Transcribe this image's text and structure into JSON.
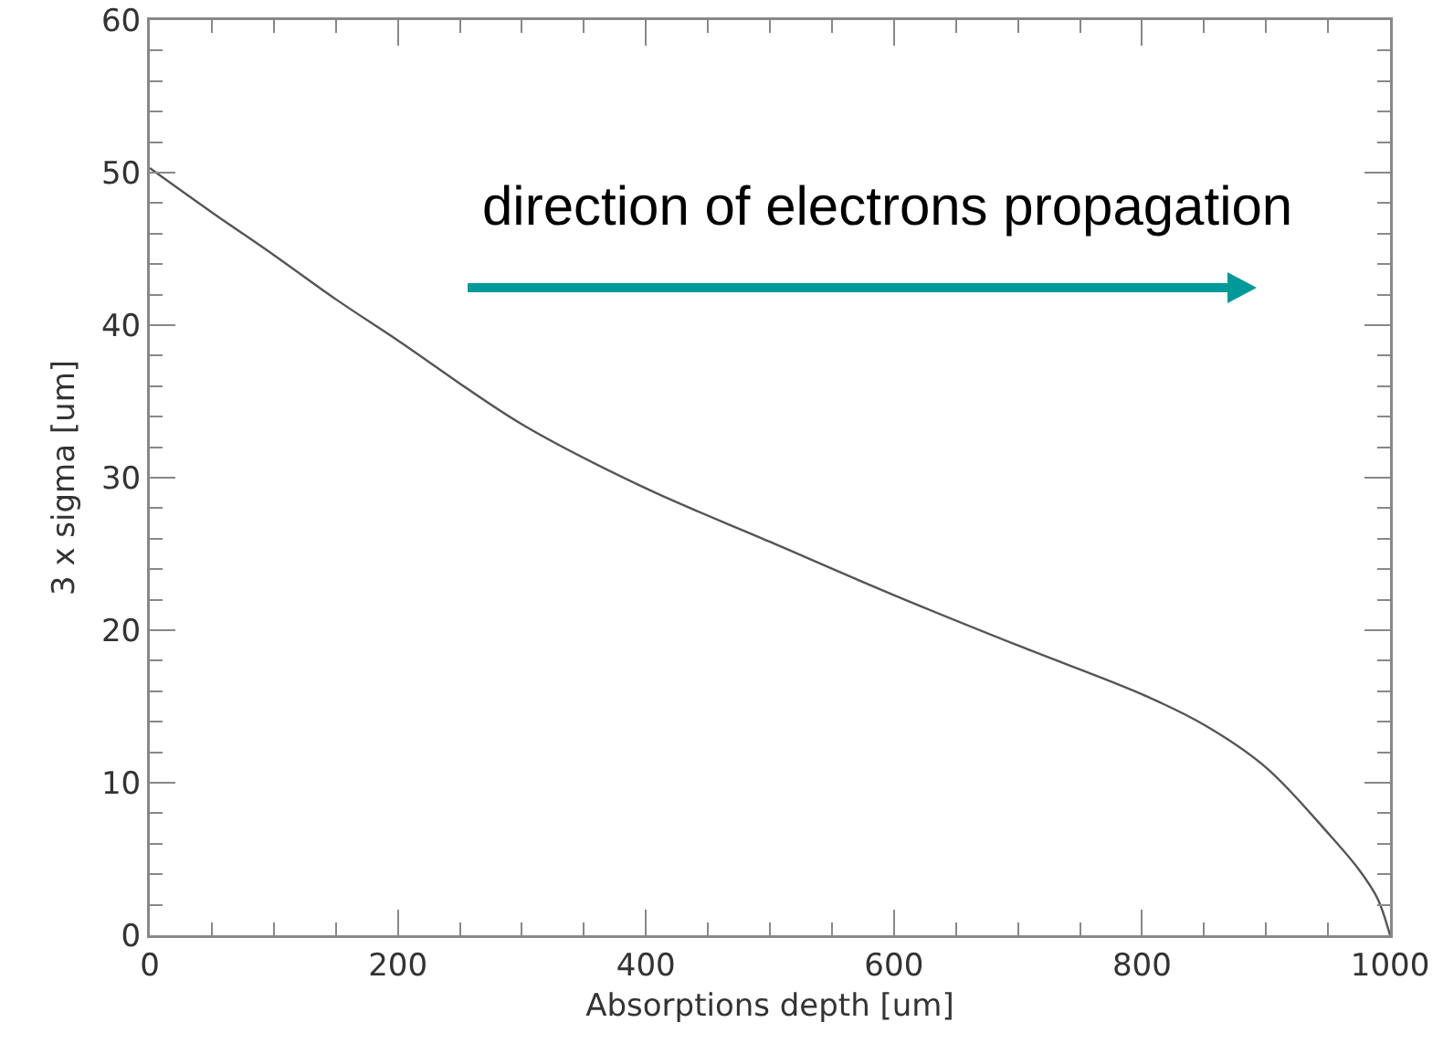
{
  "chart_data": {
    "type": "line",
    "xlabel": "Absorptions depth [um]",
    "ylabel": "3 x sigma [um]",
    "annotations": [
      "direction of electrons propagation"
    ],
    "x": [
      0,
      50,
      100,
      150,
      200,
      300,
      400,
      500,
      600,
      700,
      800,
      850,
      900,
      950,
      975,
      990,
      1000
    ],
    "series": [
      {
        "color": "#555555",
        "values": [
          50.3,
          47.4,
          44.6,
          41.7,
          39.0,
          33.5,
          29.3,
          25.8,
          22.3,
          19.0,
          15.8,
          13.8,
          11.0,
          6.7,
          4.3,
          2.4,
          0
        ]
      }
    ],
    "xlim": [
      0,
      1000
    ],
    "xticks": [
      0,
      200,
      400,
      600,
      800,
      1000
    ],
    "ylim": [
      0,
      60
    ],
    "yticks": [
      0,
      10,
      20,
      30,
      40,
      50,
      60
    ],
    "marker": "none",
    "line_style": "solid"
  }
}
